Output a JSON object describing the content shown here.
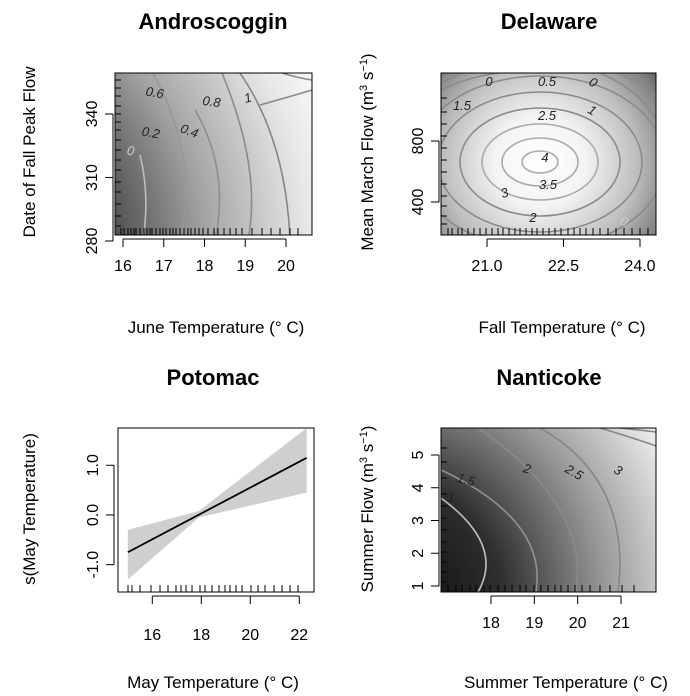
{
  "chart_data": [
    {
      "type": "heatmap",
      "title": "Androscoggin",
      "xlabel": "June Temperature (° C)",
      "ylabel": "Date of Fall Peak Flow",
      "xlim": [
        15.7,
        20.6
      ],
      "ylim": [
        280,
        360
      ],
      "xticks": [
        "16",
        "17",
        "18",
        "19",
        "20"
      ],
      "yticks": [
        "280",
        "310",
        "340"
      ],
      "contour_labels": [
        "0",
        "0.2",
        "0.4",
        "0.6",
        "0.8",
        "1"
      ]
    },
    {
      "type": "heatmap",
      "title": "Delaware",
      "xlabel": "Fall Temperature (° C)",
      "ylabel": "Mean March Flow (m3 s−1)",
      "xlim": [
        20.7,
        24.4
      ],
      "ylim": [
        200,
        1080
      ],
      "xticks": [
        "21.0",
        "22.5",
        "24.0"
      ],
      "yticks": [
        "400",
        "800"
      ],
      "contour_labels": [
        "0",
        "0.5",
        "0",
        "1.5",
        "2.5",
        "1",
        "4",
        "3.5",
        "3",
        "2",
        "1",
        "1",
        "0"
      ]
    },
    {
      "type": "line",
      "title": "Potomac",
      "xlabel": "May Temperature (° C)",
      "ylabel": "s(May Temperature)",
      "xlim": [
        14.6,
        22.6
      ],
      "ylim": [
        -1.55,
        1.75
      ],
      "xticks": [
        "16",
        "18",
        "20",
        "22"
      ],
      "yticks": [
        "-1.0",
        "0.0",
        "1.0"
      ],
      "series": [
        {
          "x": [
            15,
            22.3
          ],
          "y": [
            -0.75,
            1.15
          ]
        }
      ],
      "band": {
        "x": [
          15,
          17.9,
          22.3
        ],
        "upper": [
          -0.3,
          0.08,
          1.75
        ],
        "lower": [
          -1.3,
          -0.05,
          0.45
        ]
      }
    },
    {
      "type": "heatmap",
      "title": "Nanticoke",
      "xlabel": "Summer Temperature (° C)",
      "ylabel": "Summer Flow (m3 s−1)",
      "xlim": [
        17.6,
        21.8
      ],
      "ylim": [
        0.75,
        5.8
      ],
      "xticks": [
        "18",
        "19",
        "20",
        "21"
      ],
      "yticks": [
        "1",
        "2",
        "3",
        "4",
        "5"
      ],
      "contour_labels": [
        "1",
        "1.5",
        "2",
        "2.5",
        "3"
      ]
    }
  ]
}
